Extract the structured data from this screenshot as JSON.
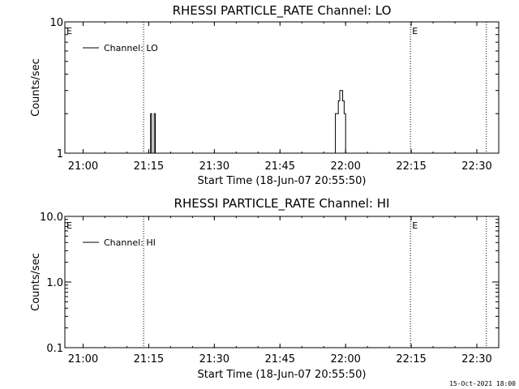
{
  "footer": "15-Oct-2021 18:00",
  "chart_data": [
    {
      "type": "line",
      "title": "RHESSI PARTICLE_RATE Channel: LO",
      "xlabel": "Start Time (18-Jun-07 20:55:50)",
      "ylabel": "Counts/sec",
      "yscale": "log",
      "ylim": [
        1,
        10
      ],
      "yticks": [
        1,
        10
      ],
      "ytick_labels": [
        "1",
        "10"
      ],
      "xlim": [
        "20:55:50",
        "22:35:00"
      ],
      "xticks": [
        "21:00",
        "21:15",
        "21:30",
        "21:45",
        "22:00",
        "22:15",
        "22:30"
      ],
      "legend": "top-left",
      "series": [
        {
          "name": "Channel: LO",
          "color": "#000000",
          "points": [
            [
              "21:15:10",
              1
            ],
            [
              "21:15:25",
              2
            ],
            [
              "21:15:40",
              1
            ],
            [
              "21:16:00",
              1
            ],
            [
              "21:16:15",
              2
            ],
            [
              "21:16:30",
              1
            ],
            [
              "21:57:20",
              1
            ],
            [
              "21:57:40",
              2
            ],
            [
              "21:58:00",
              2
            ],
            [
              "21:58:20",
              2.5
            ],
            [
              "21:58:40",
              3
            ],
            [
              "21:59:00",
              3
            ],
            [
              "21:59:20",
              2.5
            ],
            [
              "21:59:40",
              2
            ],
            [
              "22:00:00",
              1
            ]
          ]
        }
      ],
      "vlines": [
        {
          "x": "21:13:50",
          "style": "dotted",
          "label": ""
        },
        {
          "x": "22:14:50",
          "style": "dotted",
          "label": "E"
        },
        {
          "x": "22:32:10",
          "style": "dotted",
          "label": ""
        }
      ],
      "corner_label": "E"
    },
    {
      "type": "line",
      "title": "RHESSI PARTICLE_RATE Channel: HI",
      "xlabel": "Start Time (18-Jun-07 20:55:50)",
      "ylabel": "Counts/sec",
      "yscale": "log",
      "ylim": [
        0.1,
        10
      ],
      "yticks": [
        0.1,
        1,
        10
      ],
      "ytick_labels": [
        "0.1",
        "1.0",
        "10.0"
      ],
      "xlim": [
        "20:55:50",
        "22:35:00"
      ],
      "xticks": [
        "21:00",
        "21:15",
        "21:30",
        "21:45",
        "22:00",
        "22:15",
        "22:30"
      ],
      "legend": "top-left",
      "series": [
        {
          "name": "Channel: HI",
          "color": "#000000",
          "points": []
        }
      ],
      "vlines": [
        {
          "x": "21:13:50",
          "style": "dotted",
          "label": ""
        },
        {
          "x": "22:14:50",
          "style": "dotted",
          "label": "E"
        },
        {
          "x": "22:32:10",
          "style": "dotted",
          "label": ""
        }
      ],
      "corner_label": "E"
    }
  ]
}
